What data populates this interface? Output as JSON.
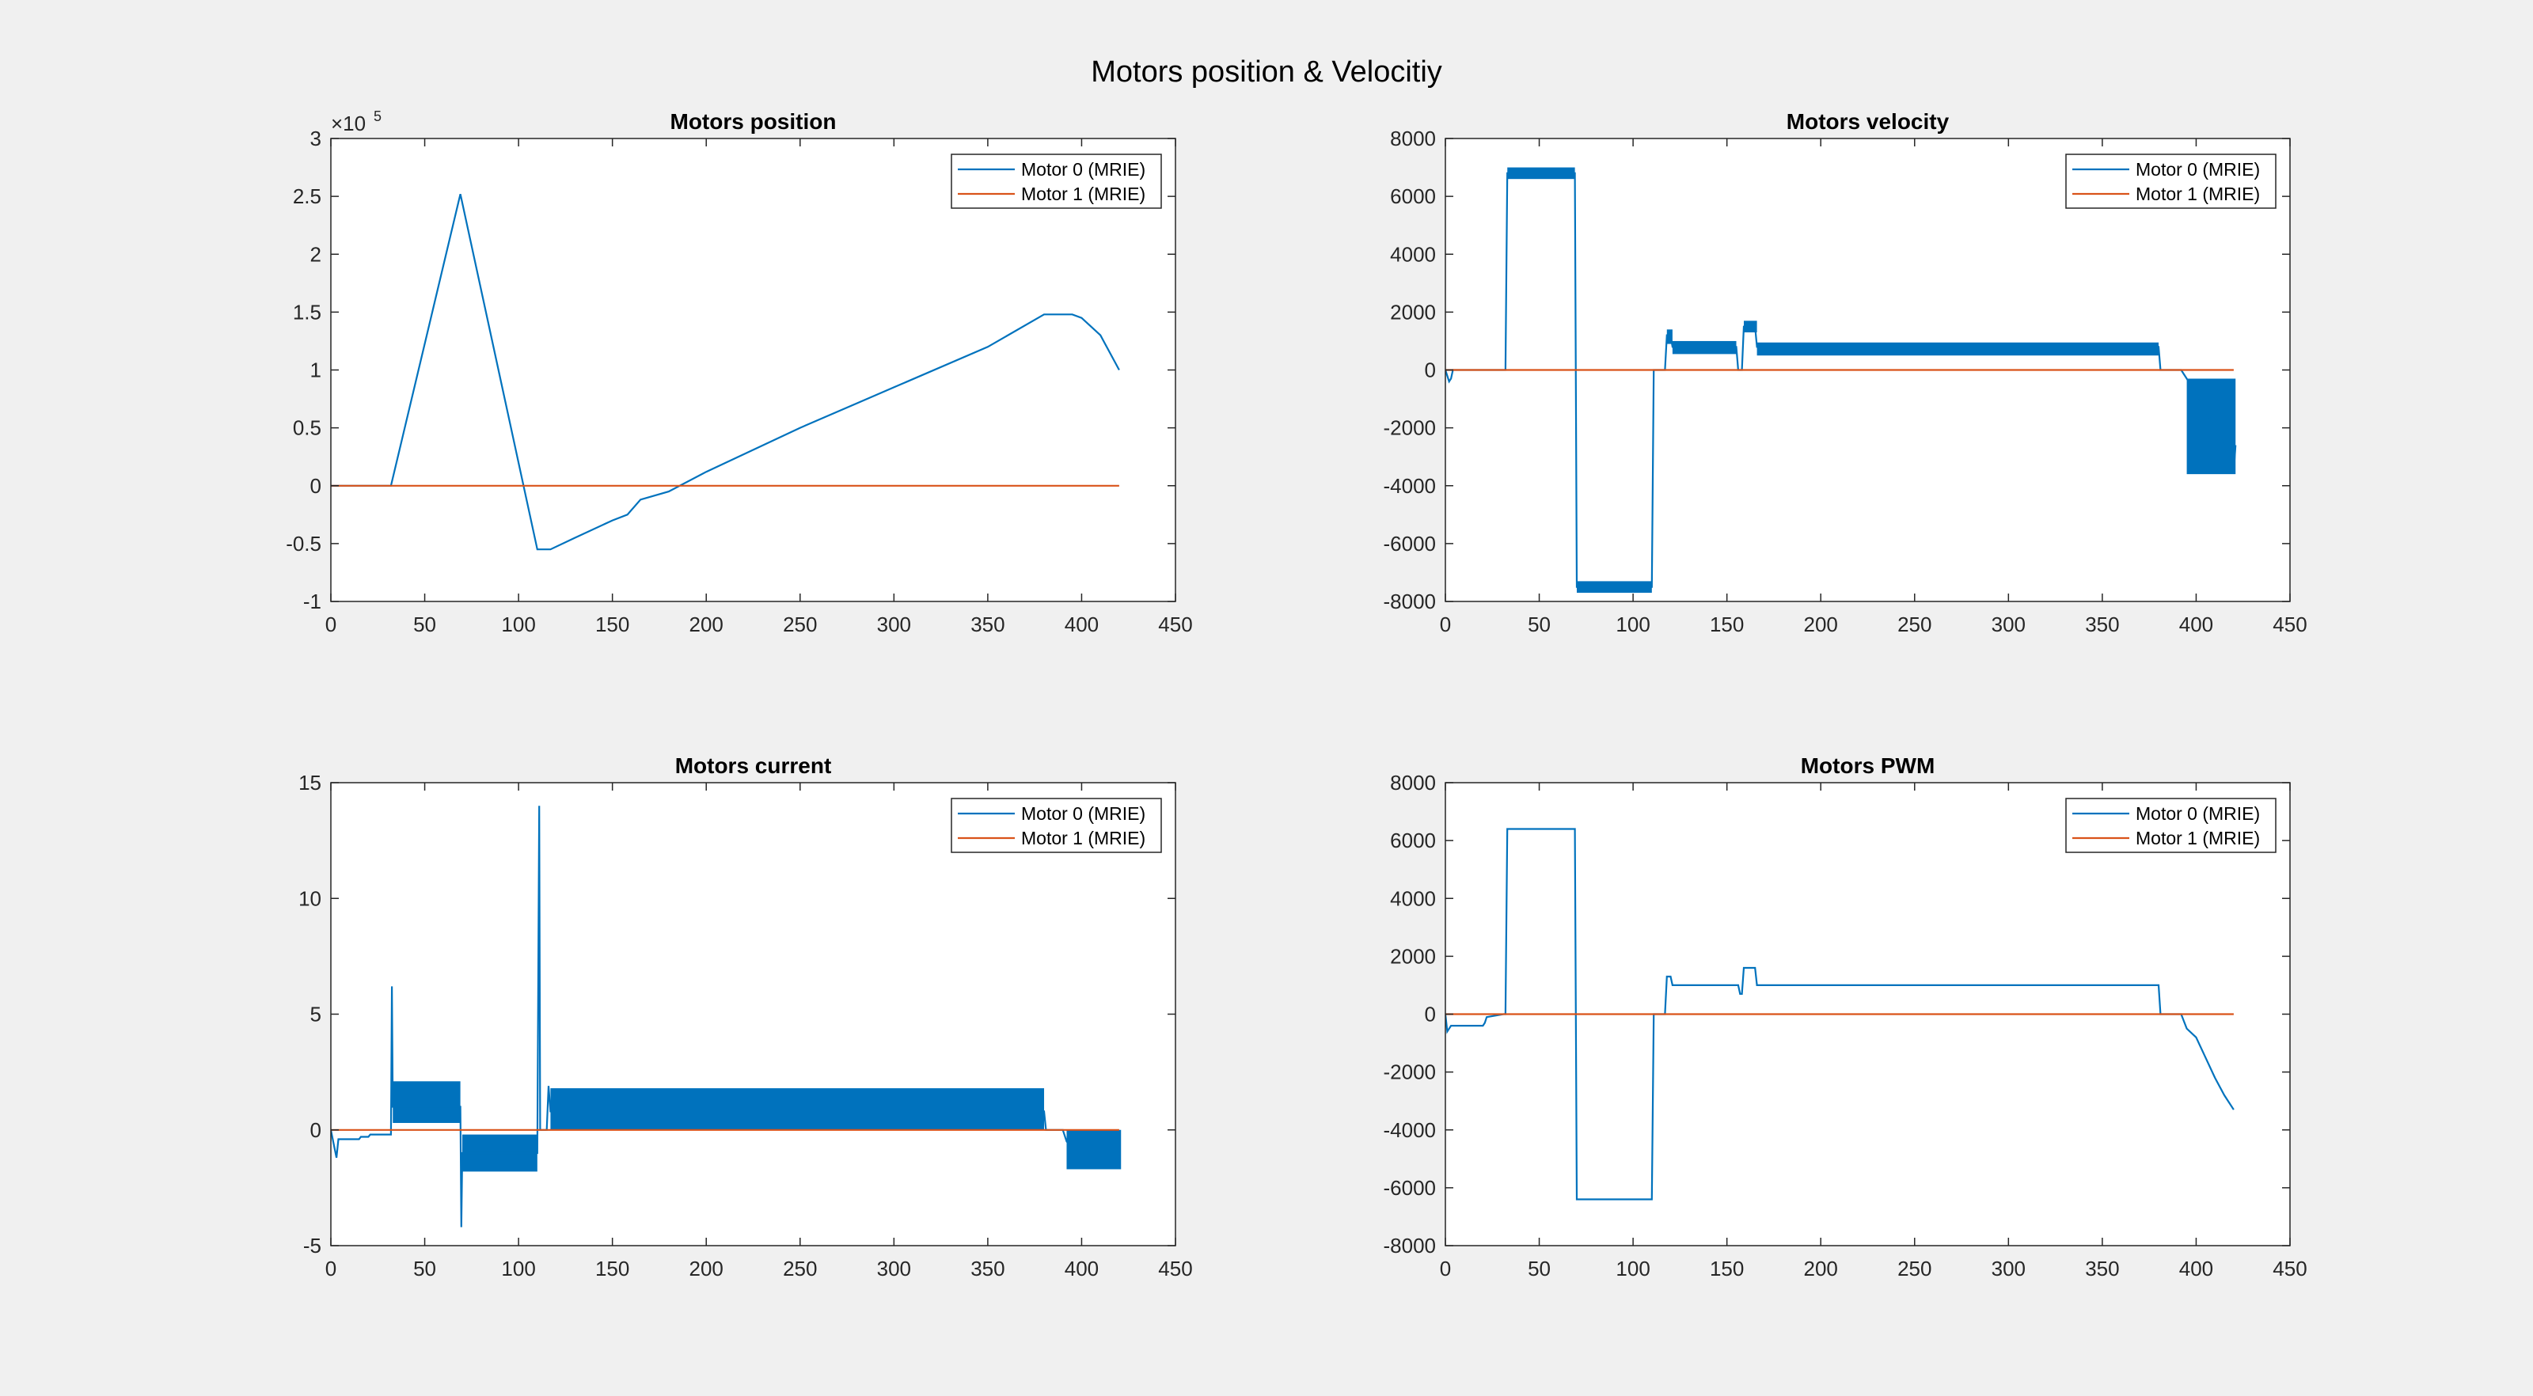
{
  "figure": {
    "title": "Motors position & Velocitiy"
  },
  "colors": {
    "motor0": "#0072BD",
    "motor1": "#D95319",
    "background": "#f0f0f0",
    "axes_bg": "#ffffff"
  },
  "chart_data": [
    {
      "type": "line",
      "title": "Motors position",
      "xlabel": "",
      "ylabel": "",
      "xlim": [
        0,
        450
      ],
      "ylim": [
        -1,
        3
      ],
      "xticks": [
        "0",
        "50",
        "100",
        "150",
        "200",
        "250",
        "300",
        "350",
        "400",
        "450"
      ],
      "yticks": [
        "-1",
        "-0.5",
        "0",
        "0.5",
        "1",
        "1.5",
        "2",
        "2.5",
        "3"
      ],
      "y_exponent": "×10",
      "y_exponent_power": "5",
      "grid": false,
      "legend": "top-right",
      "series": [
        {
          "name": "Motor 0 (MRIE)",
          "color": "#0072BD",
          "x": [
            0,
            32,
            69,
            110,
            117,
            130,
            150,
            158,
            165,
            180,
            200,
            250,
            300,
            350,
            380,
            395,
            400,
            410,
            420
          ],
          "y": [
            0,
            0,
            2.52,
            -0.55,
            -0.55,
            -0.45,
            -0.3,
            -0.25,
            -0.12,
            -0.05,
            0.12,
            0.5,
            0.85,
            1.2,
            1.48,
            1.48,
            1.45,
            1.3,
            1.0
          ],
          "band": []
        },
        {
          "name": "Motor 1 (MRIE)",
          "color": "#D95319",
          "x": [
            0,
            420
          ],
          "y": [
            0,
            0
          ],
          "band": []
        }
      ]
    },
    {
      "type": "line",
      "title": "Motors velocity",
      "xlabel": "",
      "ylabel": "",
      "xlim": [
        0,
        450
      ],
      "ylim": [
        -8000,
        8000
      ],
      "xticks": [
        "0",
        "50",
        "100",
        "150",
        "200",
        "250",
        "300",
        "350",
        "400",
        "450"
      ],
      "yticks": [
        "-8000",
        "-6000",
        "-4000",
        "-2000",
        "0",
        "2000",
        "4000",
        "6000",
        "8000"
      ],
      "grid": false,
      "legend": "top-right",
      "series": [
        {
          "name": "Motor 0 (MRIE)",
          "color": "#0072BD",
          "x": [
            0,
            2,
            3,
            4,
            20,
            32,
            33,
            69,
            70,
            110,
            111,
            117,
            118,
            120,
            121,
            155,
            156,
            158,
            159,
            165,
            166,
            380,
            381,
            392,
            395,
            400,
            405,
            410,
            415,
            418,
            420,
            421
          ],
          "y": [
            0,
            -400,
            -300,
            0,
            0,
            0,
            6800,
            6800,
            -7500,
            -7500,
            0,
            0,
            1200,
            1200,
            800,
            800,
            0,
            0,
            1500,
            1500,
            800,
            800,
            0,
            0,
            -300,
            -800,
            -1400,
            -2000,
            -2600,
            -3100,
            -3500,
            -2600
          ],
          "band": [
            [
              33,
              69,
              6600,
              7000
            ],
            [
              70,
              110,
              -7700,
              -7300
            ],
            [
              118,
              121,
              900,
              1400
            ],
            [
              121,
              155,
              550,
              1000
            ],
            [
              159,
              166,
              1300,
              1700
            ],
            [
              166,
              380,
              500,
              950
            ],
            [
              395,
              421,
              -3600,
              -300
            ]
          ]
        },
        {
          "name": "Motor 1 (MRIE)",
          "color": "#D95319",
          "x": [
            0,
            420
          ],
          "y": [
            0,
            0
          ],
          "band": []
        }
      ]
    },
    {
      "type": "line",
      "title": "Motors current",
      "xlabel": "",
      "ylabel": "",
      "xlim": [
        0,
        450
      ],
      "ylim": [
        -5,
        15
      ],
      "xticks": [
        "0",
        "50",
        "100",
        "150",
        "200",
        "250",
        "300",
        "350",
        "400",
        "450"
      ],
      "yticks": [
        "-5",
        "0",
        "5",
        "10",
        "15"
      ],
      "grid": false,
      "legend": "top-right",
      "series": [
        {
          "name": "Motor 0 (MRIE)",
          "color": "#0072BD",
          "x": [
            0,
            2,
            3,
            4,
            15,
            16,
            20,
            21,
            32,
            32.5,
            33,
            69,
            69.5,
            70,
            110,
            111,
            111.5,
            112,
            115,
            116,
            117,
            380,
            381,
            390,
            392,
            395,
            420
          ],
          "y": [
            0,
            -0.8,
            -1.2,
            -0.4,
            -0.4,
            -0.3,
            -0.3,
            -0.2,
            -0.2,
            6.2,
            1.0,
            1.0,
            -4.2,
            -1.0,
            -1.0,
            14,
            0,
            0,
            0,
            1.9,
            0.8,
            0.8,
            0,
            0,
            -0.5,
            -0.8,
            -0.8
          ],
          "band": [
            [
              33,
              69,
              0.3,
              2.1
            ],
            [
              70,
              110,
              -1.8,
              -0.2
            ],
            [
              117,
              380,
              0,
              1.8
            ],
            [
              392,
              421,
              -1.7,
              0
            ]
          ]
        },
        {
          "name": "Motor 1 (MRIE)",
          "color": "#D95319",
          "x": [
            0,
            420
          ],
          "y": [
            0,
            0
          ],
          "band": []
        }
      ]
    },
    {
      "type": "line",
      "title": "Motors PWM",
      "xlabel": "",
      "ylabel": "",
      "xlim": [
        0,
        450
      ],
      "ylim": [
        -8000,
        8000
      ],
      "xticks": [
        "0",
        "50",
        "100",
        "150",
        "200",
        "250",
        "300",
        "350",
        "400",
        "450"
      ],
      "yticks": [
        "-8000",
        "-6000",
        "-4000",
        "-2000",
        "0",
        "2000",
        "4000",
        "6000",
        "8000"
      ],
      "grid": false,
      "legend": "top-right",
      "series": [
        {
          "name": "Motor 0 (MRIE)",
          "color": "#0072BD",
          "x": [
            0,
            1,
            2,
            3,
            5,
            20,
            21,
            22,
            31,
            32,
            33,
            69,
            70,
            110,
            111,
            117,
            118,
            120,
            121,
            150,
            151,
            156,
            157,
            158,
            159,
            165,
            166,
            380,
            381,
            392,
            395,
            400,
            405,
            410,
            415,
            420
          ],
          "y": [
            0,
            -600,
            -500,
            -400,
            -400,
            -400,
            -300,
            -100,
            0,
            0,
            6400,
            6400,
            -6400,
            -6400,
            0,
            0,
            1300,
            1300,
            1000,
            1000,
            1000,
            1000,
            700,
            700,
            1600,
            1600,
            1000,
            1000,
            0,
            0,
            -500,
            -800,
            -1500,
            -2200,
            -2800,
            -3300
          ],
          "band": []
        },
        {
          "name": "Motor 1 (MRIE)",
          "color": "#D95319",
          "x": [
            0,
            420
          ],
          "y": [
            0,
            0
          ],
          "band": []
        }
      ]
    }
  ]
}
